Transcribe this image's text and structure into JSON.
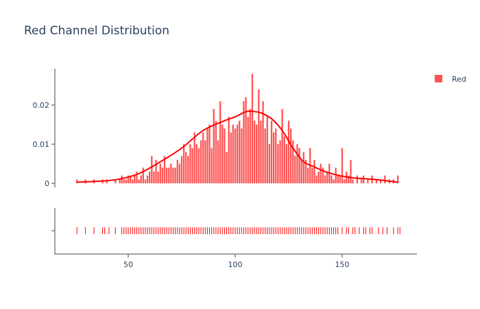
{
  "chart_data": {
    "type": "histogram",
    "title": "Red Channel Distribution",
    "xlabel": "",
    "ylabel": "",
    "xlim": [
      20,
      180
    ],
    "ylim": [
      0,
      0.029
    ],
    "grid": false,
    "legend_position": "top-right",
    "colors": {
      "bar": "#ff5252",
      "kde": "#ff0000",
      "rug": "#ff0000",
      "axis": "#444444",
      "text": "#2a3f5f"
    },
    "series": [
      {
        "name": "Red"
      }
    ],
    "x_ticks": [
      50,
      100,
      150
    ],
    "y_ticks": [
      {
        "value": 0,
        "label": "0"
      },
      {
        "value": 0.01,
        "label": "0.01"
      },
      {
        "value": 0.02,
        "label": "0.02"
      }
    ],
    "bins": {
      "x": [
        26,
        30,
        34,
        38,
        40,
        44,
        46,
        47,
        48,
        49,
        50,
        51,
        52,
        53,
        54,
        55,
        56,
        57,
        58,
        59,
        60,
        61,
        62,
        63,
        64,
        65,
        66,
        67,
        68,
        69,
        70,
        71,
        72,
        73,
        74,
        75,
        76,
        77,
        78,
        79,
        80,
        81,
        82,
        83,
        84,
        85,
        86,
        87,
        88,
        89,
        90,
        91,
        92,
        93,
        94,
        95,
        96,
        97,
        98,
        99,
        100,
        101,
        102,
        103,
        104,
        105,
        106,
        107,
        108,
        109,
        110,
        111,
        112,
        113,
        114,
        115,
        116,
        117,
        118,
        119,
        120,
        121,
        122,
        123,
        124,
        125,
        126,
        127,
        128,
        129,
        130,
        131,
        132,
        133,
        134,
        135,
        136,
        137,
        138,
        139,
        140,
        141,
        142,
        143,
        144,
        145,
        146,
        147,
        148,
        149,
        150,
        151,
        152,
        153,
        154,
        155,
        157,
        159,
        160,
        162,
        164,
        166,
        168,
        170,
        172,
        174,
        176
      ],
      "values": [
        0.001,
        0.001,
        0.001,
        0.001,
        0.001,
        0.001,
        0.001,
        0.002,
        0.001,
        0.001,
        0.002,
        0.002,
        0.001,
        0.002,
        0.003,
        0.001,
        0.002,
        0.004,
        0.001,
        0.002,
        0.003,
        0.007,
        0.003,
        0.006,
        0.003,
        0.005,
        0.004,
        0.007,
        0.004,
        0.004,
        0.005,
        0.004,
        0.004,
        0.006,
        0.005,
        0.007,
        0.01,
        0.008,
        0.007,
        0.01,
        0.009,
        0.013,
        0.01,
        0.009,
        0.011,
        0.013,
        0.011,
        0.014,
        0.015,
        0.009,
        0.019,
        0.016,
        0.011,
        0.021,
        0.015,
        0.014,
        0.008,
        0.017,
        0.013,
        0.015,
        0.014,
        0.015,
        0.016,
        0.014,
        0.021,
        0.022,
        0.017,
        0.019,
        0.028,
        0.016,
        0.015,
        0.024,
        0.016,
        0.021,
        0.014,
        0.017,
        0.01,
        0.016,
        0.013,
        0.014,
        0.01,
        0.011,
        0.019,
        0.012,
        0.01,
        0.016,
        0.014,
        0.011,
        0.007,
        0.01,
        0.009,
        0.006,
        0.008,
        0.006,
        0.004,
        0.009,
        0.004,
        0.006,
        0.002,
        0.003,
        0.005,
        0.004,
        0.002,
        0.003,
        0.005,
        0.002,
        0.001,
        0.004,
        0.002,
        0.002,
        0.009,
        0.001,
        0.003,
        0.002,
        0.006,
        0.001,
        0.002,
        0.001,
        0.002,
        0.001,
        0.002,
        0.001,
        0.001,
        0.002,
        0.001,
        0.001,
        0.002
      ]
    },
    "kde": {
      "x": [
        26,
        35,
        45,
        55,
        65,
        75,
        85,
        95,
        100,
        105,
        108,
        112,
        117,
        122,
        127,
        132,
        137,
        142,
        147,
        155,
        165,
        176
      ],
      "y": [
        0.0003,
        0.0005,
        0.001,
        0.0025,
        0.0055,
        0.009,
        0.0135,
        0.016,
        0.017,
        0.0183,
        0.0184,
        0.018,
        0.0165,
        0.0135,
        0.009,
        0.0055,
        0.0042,
        0.003,
        0.0022,
        0.0014,
        0.001,
        0.0003
      ]
    },
    "rug": [
      26,
      30,
      34,
      38,
      39,
      41,
      44,
      47,
      48,
      49,
      50,
      51,
      52,
      53,
      54,
      55,
      56,
      57,
      58,
      59,
      60,
      61,
      62,
      63,
      64,
      65,
      66,
      67,
      68,
      69,
      70,
      71,
      72,
      73,
      74,
      75,
      76,
      77,
      78,
      79,
      80,
      81,
      82,
      83,
      84,
      85,
      86,
      87,
      88,
      89,
      90,
      91,
      92,
      93,
      94,
      95,
      96,
      97,
      98,
      99,
      100,
      101,
      102,
      103,
      104,
      105,
      106,
      107,
      108,
      109,
      110,
      111,
      112,
      113,
      114,
      115,
      116,
      117,
      118,
      119,
      120,
      121,
      122,
      123,
      124,
      125,
      126,
      127,
      128,
      129,
      130,
      131,
      132,
      133,
      134,
      135,
      136,
      137,
      138,
      139,
      140,
      141,
      142,
      143,
      144,
      145,
      146,
      147,
      148,
      150,
      152,
      153,
      155,
      156,
      158,
      160,
      161,
      163,
      164,
      167,
      169,
      171,
      174,
      176,
      177
    ]
  }
}
